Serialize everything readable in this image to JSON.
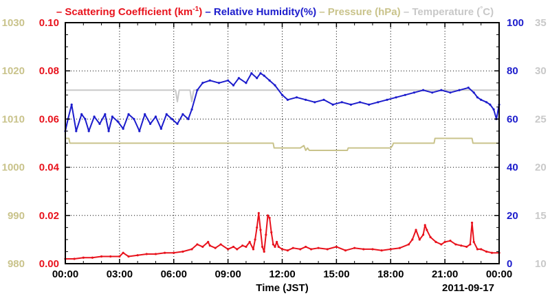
{
  "chart_data": {
    "type": "line",
    "legend": [
      {
        "prefix": "–",
        "text": "Scattering Coefficient (km",
        "sup": "-1",
        "suffix": ")",
        "color": "#e8121c"
      },
      {
        "prefix": "–",
        "text": "Relative Humidity(%)",
        "color": "#1c1ccc"
      },
      {
        "prefix": "–",
        "text": "Pressure (hPa)",
        "color": "#c9c38b"
      },
      {
        "prefix": "–",
        "text": "Temperature (",
        "sup": "°",
        "suffix": "C)",
        "color": "#c8c8c8"
      }
    ],
    "xlabel": "Time (JST)",
    "date_label": "2011-09-17",
    "x_ticks": [
      "00:00",
      "03:00",
      "06:00",
      "09:00",
      "12:00",
      "15:00",
      "18:00",
      "21:00",
      "00:00"
    ],
    "xlim_hours": [
      0,
      24
    ],
    "grid": true,
    "axes": {
      "pressure": {
        "side": "left-outer",
        "color": "#c9c38b",
        "ylim": [
          980,
          1030
        ],
        "ticks": [
          "980",
          "990",
          "1000",
          "1010",
          "1020",
          "1030"
        ]
      },
      "scattering": {
        "side": "left-inner",
        "color": "#e8121c",
        "ylim": [
          0.0,
          0.1
        ],
        "ticks": [
          "0.00",
          "0.02",
          "0.04",
          "0.06",
          "0.08",
          "0.10"
        ]
      },
      "humidity": {
        "side": "right-inner",
        "color": "#1c1ccc",
        "ylim": [
          0,
          100
        ],
        "ticks": [
          "0",
          "20",
          "40",
          "60",
          "80",
          "100"
        ]
      },
      "temperature": {
        "side": "right-outer",
        "color": "#c8c8c8",
        "ylim": [
          10,
          35
        ],
        "ticks": [
          "10",
          "15",
          "20",
          "25",
          "30",
          "35"
        ]
      }
    },
    "series": [
      {
        "name": "Scattering Coefficient (km-1)",
        "axis": "scattering",
        "color": "#e8121c",
        "x": [
          0,
          0.5,
          1,
          1.5,
          2,
          2.5,
          3,
          3.2,
          3.5,
          4,
          4.5,
          5,
          5.5,
          6,
          6.5,
          7,
          7.3,
          7.6,
          7.9,
          8,
          8.3,
          8.6,
          9,
          9.3,
          9.5,
          9.8,
          10,
          10.2,
          10.4,
          10.5,
          10.6,
          10.7,
          10.8,
          10.9,
          11,
          11.1,
          11.2,
          11.3,
          11.4,
          11.5,
          11.6,
          11.7,
          11.8,
          12,
          12.3,
          12.6,
          13,
          13.3,
          13.6,
          14,
          14.5,
          15,
          15.5,
          16,
          16.5,
          17,
          17.5,
          18,
          18.5,
          19,
          19.2,
          19.4,
          19.6,
          19.8,
          19.9,
          20,
          20.2,
          20.5,
          20.8,
          21,
          21.3,
          21.6,
          21.9,
          22.2,
          22.4,
          22.5,
          22.6,
          22.8,
          23,
          23.3,
          23.6,
          24
        ],
        "values": [
          0.002,
          0.002,
          0.0025,
          0.0025,
          0.003,
          0.003,
          0.003,
          0.0045,
          0.003,
          0.0035,
          0.004,
          0.004,
          0.0045,
          0.0045,
          0.005,
          0.006,
          0.008,
          0.007,
          0.009,
          0.0075,
          0.0065,
          0.008,
          0.006,
          0.007,
          0.006,
          0.0075,
          0.007,
          0.009,
          0.006,
          0.01,
          0.015,
          0.021,
          0.014,
          0.007,
          0.005,
          0.012,
          0.02,
          0.019,
          0.013,
          0.008,
          0.007,
          0.009,
          0.007,
          0.006,
          0.0055,
          0.0065,
          0.006,
          0.007,
          0.006,
          0.0065,
          0.006,
          0.007,
          0.0055,
          0.0065,
          0.006,
          0.006,
          0.0055,
          0.006,
          0.0065,
          0.008,
          0.01,
          0.014,
          0.01,
          0.012,
          0.016,
          0.014,
          0.011,
          0.009,
          0.008,
          0.009,
          0.0095,
          0.008,
          0.0075,
          0.007,
          0.008,
          0.017,
          0.009,
          0.006,
          0.006,
          0.005,
          0.0045,
          0.0045
        ]
      },
      {
        "name": "Relative Humidity(%)",
        "axis": "humidity",
        "color": "#1c1ccc",
        "x": [
          0,
          0.15,
          0.35,
          0.6,
          0.9,
          1.1,
          1.3,
          1.6,
          1.9,
          2.2,
          2.4,
          2.6,
          2.9,
          3.2,
          3.5,
          3.8,
          4.1,
          4.4,
          4.7,
          5.0,
          5.3,
          5.6,
          5.9,
          6.2,
          6.5,
          6.8,
          7.0,
          7.3,
          7.6,
          8.0,
          8.5,
          9.0,
          9.3,
          9.6,
          10.0,
          10.3,
          10.6,
          10.8,
          11.0,
          11.3,
          11.6,
          12.0,
          12.3,
          12.8,
          13.3,
          13.8,
          14.3,
          14.8,
          15.3,
          15.8,
          16.3,
          16.8,
          17.3,
          17.8,
          18.3,
          18.8,
          19.3,
          19.8,
          20.3,
          20.8,
          21.3,
          21.8,
          22.3,
          22.6,
          22.8,
          23.0,
          23.3,
          23.5,
          23.7,
          23.85,
          24
        ],
        "values": [
          55,
          60,
          66,
          55,
          62,
          60,
          55,
          61,
          58,
          62,
          55,
          61,
          59,
          56,
          62,
          60,
          55,
          62,
          58,
          61,
          56,
          62,
          60,
          58,
          62,
          60,
          64,
          72,
          75,
          76,
          75,
          76,
          74,
          77,
          75,
          79,
          77,
          79,
          78,
          76,
          74,
          70,
          68,
          69,
          68,
          67,
          68,
          66,
          67,
          66,
          67,
          66,
          67,
          68,
          69,
          70,
          71,
          72,
          71,
          72,
          71,
          72,
          73,
          71,
          69,
          68,
          67,
          66,
          64,
          60,
          66
        ]
      },
      {
        "name": "Pressure (hPa)",
        "axis": "pressure",
        "color": "#c9c38b",
        "x": [
          0,
          0.2,
          0.25,
          1.0,
          2.0,
          3.0,
          4.0,
          5.0,
          6.0,
          7.0,
          8.0,
          9.0,
          10.0,
          11.0,
          11.5,
          11.55,
          12.5,
          13.0,
          13.2,
          13.3,
          13.4,
          13.5,
          14.0,
          15.0,
          15.6,
          15.65,
          16.0,
          17.0,
          18.0,
          18.1,
          18.15,
          19.0,
          20.0,
          20.4,
          20.45,
          21.0,
          22.0,
          22.5,
          22.55,
          23.0,
          24.0
        ],
        "values": [
          1006,
          1006,
          1005,
          1005,
          1005,
          1005,
          1005,
          1005,
          1005,
          1005,
          1005,
          1005,
          1005,
          1005,
          1005,
          1004,
          1004,
          1004,
          1004.5,
          1003.5,
          1004,
          1003.5,
          1003.5,
          1003.5,
          1003.5,
          1004,
          1004,
          1004,
          1004,
          1004.5,
          1005,
          1005,
          1005,
          1005,
          1006,
          1006,
          1006,
          1006,
          1005,
          1005,
          1005
        ]
      },
      {
        "name": "Temperature (°C)",
        "axis": "temperature",
        "color": "#c8c8c8",
        "x": [
          0,
          6.0,
          6.1,
          6.2,
          6.3,
          6.8,
          6.9,
          7.0,
          7.1,
          24
        ],
        "values": [
          28,
          28,
          28,
          26.8,
          28,
          28,
          28,
          26.8,
          28,
          28
        ]
      }
    ]
  }
}
